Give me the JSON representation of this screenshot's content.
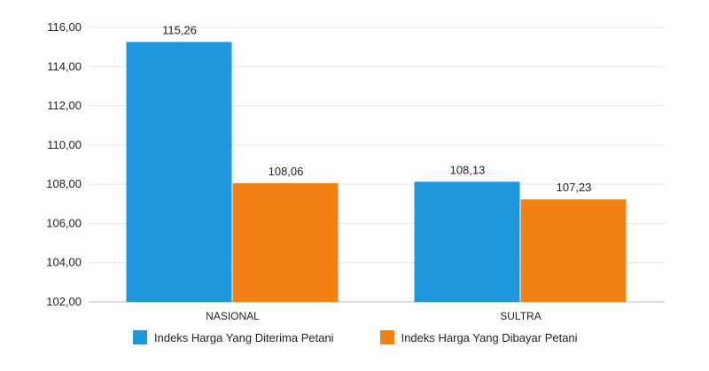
{
  "chart_data": {
    "type": "bar",
    "categories": [
      "NASIONAL",
      "SULTRA"
    ],
    "series": [
      {
        "name": "Indeks Harga Yang Diterima Petani",
        "values": [
          115.26,
          108.13
        ],
        "labels": [
          "115,26",
          "108,13"
        ],
        "color": "#1f97dd"
      },
      {
        "name": "Indeks Harga Yang Dibayar Petani",
        "values": [
          108.06,
          107.23
        ],
        "labels": [
          "108,06",
          "107,23"
        ],
        "color": "#f08112"
      }
    ],
    "ylim": [
      102,
      116
    ],
    "yticks": [
      {
        "value": 102,
        "label": "102,00"
      },
      {
        "value": 104,
        "label": "104,00"
      },
      {
        "value": 106,
        "label": "106,00"
      },
      {
        "value": 108,
        "label": "108,00"
      },
      {
        "value": 110,
        "label": "110,00"
      },
      {
        "value": 112,
        "label": "112,00"
      },
      {
        "value": 114,
        "label": "114,00"
      },
      {
        "value": 116,
        "label": "116,00"
      }
    ],
    "grid": true,
    "legend_position": "bottom"
  }
}
